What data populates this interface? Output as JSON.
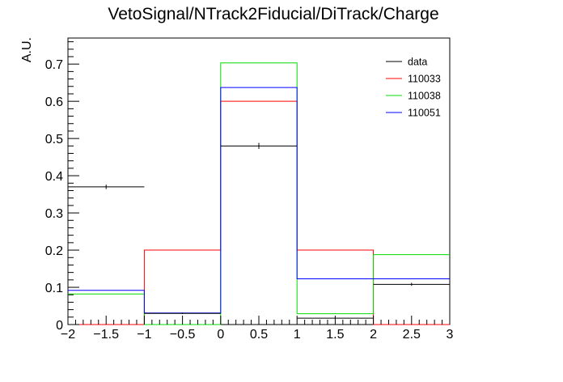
{
  "chart_data": {
    "type": "histogram-step",
    "title": "VetoSignal/NTrack2Fiducial/DiTrack/Charge",
    "xlabel": "",
    "ylabel": "A.U.",
    "xlim": [
      -2,
      3
    ],
    "ylim": [
      0,
      0.77
    ],
    "bin_edges": [
      -2,
      -1,
      0,
      1,
      2,
      3
    ],
    "xticks": [
      -2,
      -1.5,
      -1,
      -0.5,
      0,
      0.5,
      1,
      1.5,
      2,
      2.5,
      3
    ],
    "xtick_labels": [
      "−2",
      "−1.5",
      "−1",
      "−0.5",
      "0",
      "0.5",
      "1",
      "1.5",
      "2",
      "2.5",
      "3"
    ],
    "yticks": [
      0,
      0.1,
      0.2,
      0.3,
      0.4,
      0.5,
      0.6,
      0.7
    ],
    "ytick_labels": [
      "0",
      "0.1",
      "0.2",
      "0.3",
      "0.4",
      "0.5",
      "0.6",
      "0.7"
    ],
    "legend_position": "top-right",
    "series": [
      {
        "name": "data",
        "color": "#000000",
        "style": "points-with-errors",
        "values": [
          0.37,
          0.03,
          0.48,
          0.017,
          0.108
        ],
        "errors": [
          0.006,
          0.002,
          0.008,
          0.002,
          0.004
        ]
      },
      {
        "name": "110033",
        "color": "#ff0000",
        "style": "step",
        "values": [
          0.0,
          0.2,
          0.6,
          0.2,
          0.0
        ]
      },
      {
        "name": "110038",
        "color": "#00dd00",
        "style": "step",
        "values": [
          0.082,
          0.0,
          0.703,
          0.029,
          0.188
        ]
      },
      {
        "name": "110051",
        "color": "#0000ff",
        "style": "step",
        "values": [
          0.092,
          0.031,
          0.637,
          0.123,
          0.123
        ]
      }
    ]
  }
}
